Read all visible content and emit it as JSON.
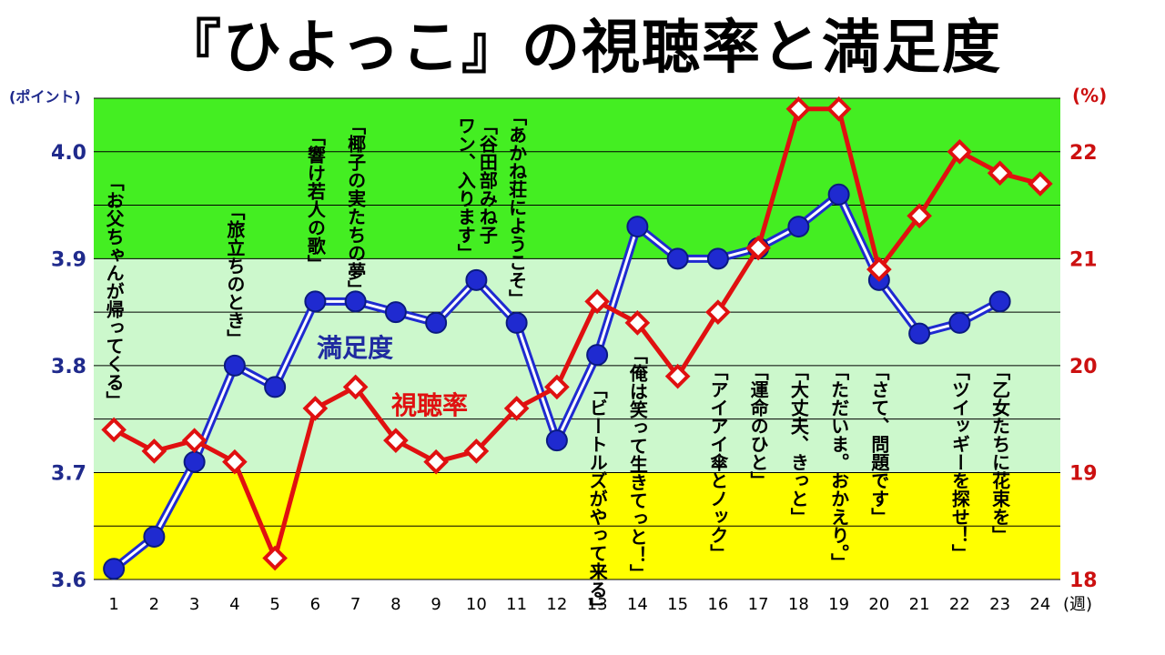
{
  "title": "『ひよっこ』の視聴率と満足度",
  "chart_data": {
    "type": "line",
    "title": "『ひよっこ』の視聴率と満足度",
    "x": [
      1,
      2,
      3,
      4,
      5,
      6,
      7,
      8,
      9,
      10,
      11,
      12,
      13,
      14,
      15,
      16,
      17,
      18,
      19,
      20,
      21,
      22,
      23,
      24
    ],
    "x_unit": "(週)",
    "y_left": {
      "unit": "(ポイント)",
      "range": [
        3.6,
        4.05
      ],
      "ticks": [
        "3.6",
        "3.7",
        "3.8",
        "3.9",
        "4.0"
      ]
    },
    "y_right": {
      "unit": "(%)",
      "range": [
        18,
        22.5
      ],
      "ticks": [
        "18",
        "19",
        "20",
        "21",
        "22"
      ]
    },
    "bands": [
      {
        "from": 3.9,
        "to": 4.05,
        "color": "#44ee22"
      },
      {
        "from": 3.7,
        "to": 3.9,
        "color": "#ccf8cc"
      },
      {
        "from": 3.6,
        "to": 3.7,
        "color": "#ffff00"
      }
    ],
    "grid": true,
    "series": [
      {
        "name": "満足度",
        "axis": "left",
        "color": "#1f2ad0",
        "values": [
          3.61,
          3.64,
          3.71,
          3.8,
          3.78,
          3.86,
          3.86,
          3.85,
          3.84,
          3.88,
          3.84,
          3.73,
          3.81,
          3.93,
          3.9,
          3.9,
          3.91,
          3.93,
          3.96,
          3.88,
          3.83,
          3.84,
          3.86,
          null
        ]
      },
      {
        "name": "視聴率",
        "axis": "right",
        "color": "#e01010",
        "values": [
          19.4,
          19.2,
          19.3,
          19.1,
          18.2,
          19.6,
          19.8,
          19.3,
          19.1,
          19.2,
          19.6,
          19.8,
          20.6,
          20.4,
          19.9,
          20.5,
          21.1,
          22.4,
          22.4,
          20.9,
          21.4,
          22.0,
          21.8,
          21.7
        ]
      }
    ],
    "annotations": [
      {
        "x": 1,
        "text": "「お父ちゃんが帰ってくる」"
      },
      {
        "x": 4,
        "text": "「旅立ちのとき」"
      },
      {
        "x": 6,
        "text": "「響け若人の歌」"
      },
      {
        "x": 7,
        "text": "「椰子の実たちの夢」"
      },
      {
        "x": 10,
        "text": "「谷田部みね子 ワン、入ります」"
      },
      {
        "x": 11,
        "text": "「あかね荘にようこそ」"
      },
      {
        "x": 13,
        "text": "「ビートルズがやって来る」"
      },
      {
        "x": 14,
        "text": "「俺は笑って生きてっと！」"
      },
      {
        "x": 16,
        "text": "「アイアイ傘とノック」"
      },
      {
        "x": 17,
        "text": "「運命のひと」"
      },
      {
        "x": 18,
        "text": "「大丈夫、きっと」"
      },
      {
        "x": 19,
        "text": "「ただいま。おかえり。」"
      },
      {
        "x": 20,
        "text": "「さて、問題です」"
      },
      {
        "x": 22,
        "text": "「ツイッギーを探せ！」"
      },
      {
        "x": 23,
        "text": "「乙女たちに花束を」"
      }
    ]
  }
}
